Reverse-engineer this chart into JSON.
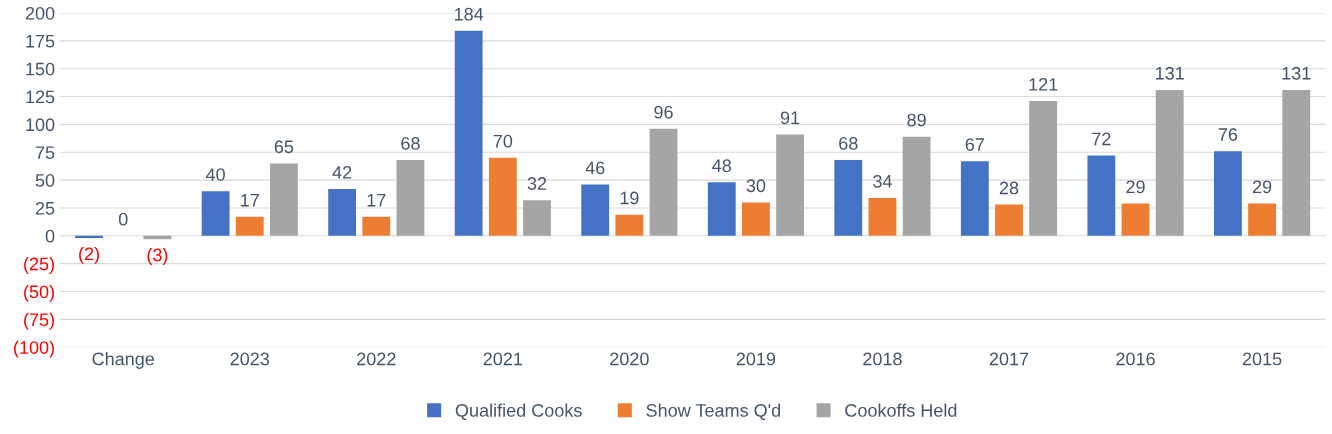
{
  "chart_data": {
    "type": "bar",
    "categories": [
      "Change",
      "2023",
      "2022",
      "2021",
      "2020",
      "2019",
      "2018",
      "2017",
      "2016",
      "2015"
    ],
    "series": [
      {
        "name": "Qualified Cooks",
        "color": "#4472c4",
        "values": [
          -2,
          40,
          42,
          184,
          46,
          48,
          68,
          67,
          72,
          76
        ],
        "value_labels": [
          "(2)",
          "40",
          "42",
          "184",
          "46",
          "48",
          "68",
          "67",
          "72",
          "76"
        ]
      },
      {
        "name": "Show Teams Q'd",
        "color": "#ed7d31",
        "values": [
          0,
          17,
          17,
          70,
          19,
          30,
          34,
          28,
          29,
          29
        ],
        "value_labels": [
          "0",
          "17",
          "17",
          "70",
          "19",
          "30",
          "34",
          "28",
          "29",
          "29"
        ]
      },
      {
        "name": "Cookoffs Held",
        "color": "#a5a5a5",
        "values": [
          -3,
          65,
          68,
          32,
          96,
          91,
          89,
          121,
          131,
          131
        ],
        "value_labels": [
          "(3)",
          "65",
          "68",
          "32",
          "96",
          "91",
          "89",
          "121",
          "131",
          "131"
        ]
      }
    ],
    "ylim": [
      -100,
      200
    ],
    "yticks": [
      {
        "value": -100,
        "label": "(100)"
      },
      {
        "value": -75,
        "label": "(75)"
      },
      {
        "value": -50,
        "label": "(50)"
      },
      {
        "value": -25,
        "label": "(25)"
      },
      0,
      25,
      50,
      75,
      100,
      125,
      150,
      175,
      200
    ],
    "grid": "y",
    "legend": "bottom"
  }
}
